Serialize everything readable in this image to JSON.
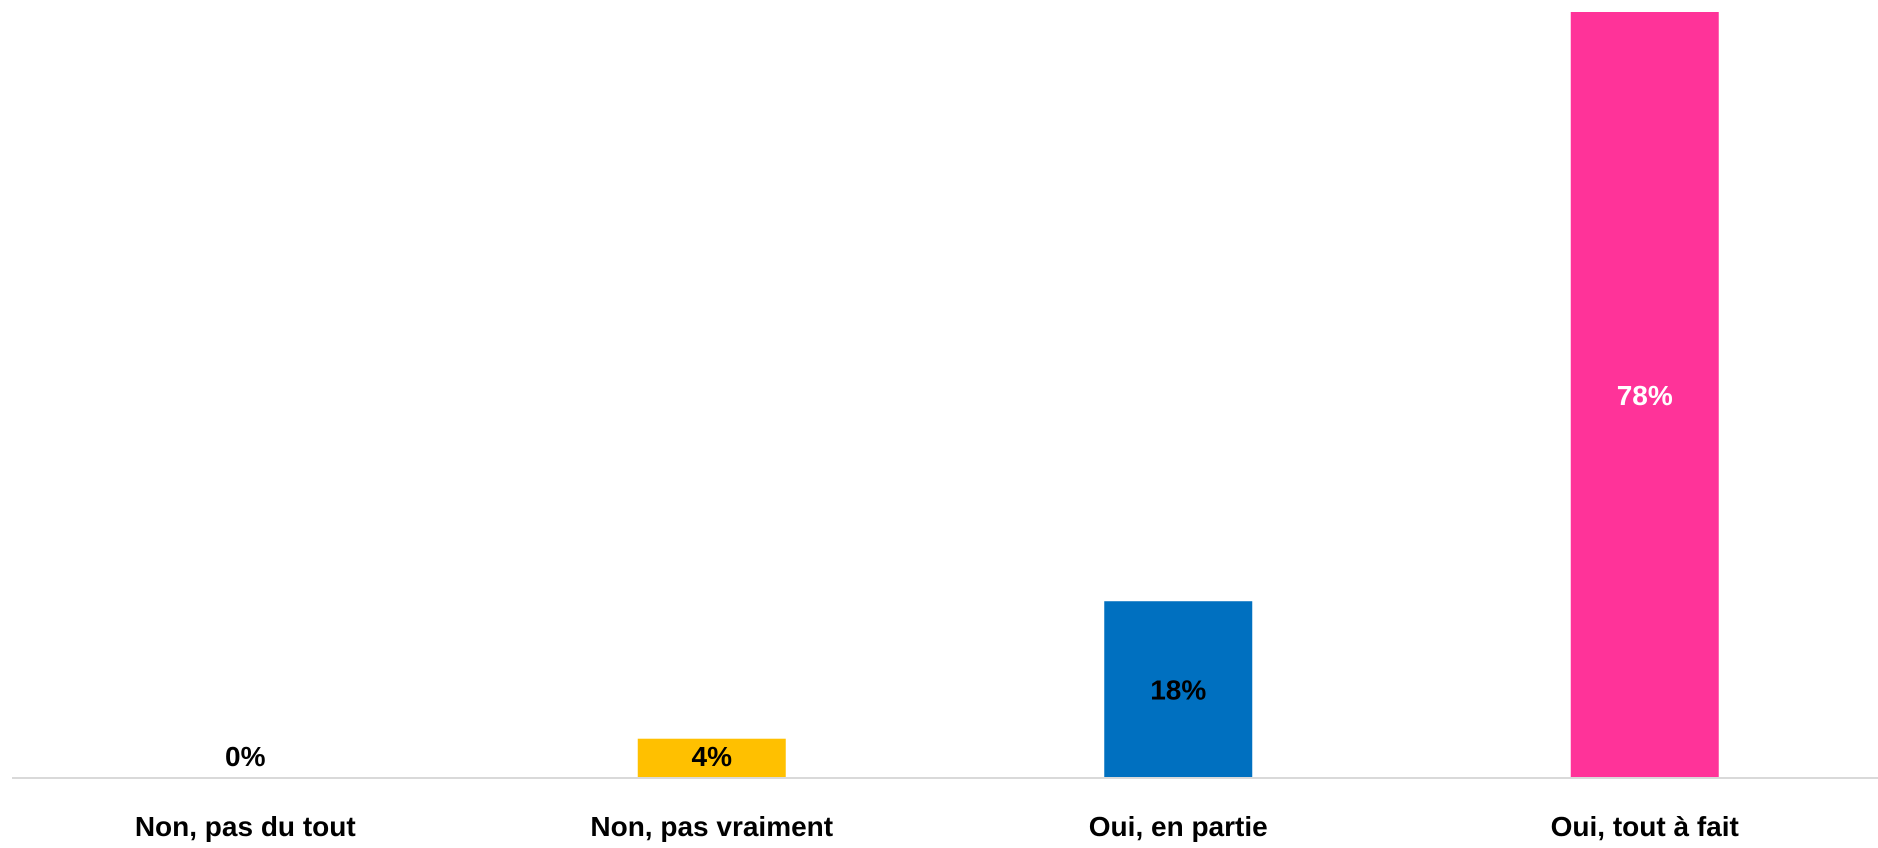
{
  "chart_data": {
    "type": "bar",
    "title": "",
    "xlabel": "",
    "ylabel": "",
    "categories": [
      "Non, pas du tout",
      "Non, pas vraiment",
      "Oui, en partie",
      "Oui, tout à fait"
    ],
    "values": [
      0,
      4,
      18,
      78
    ],
    "value_labels": [
      "0%",
      "4%",
      "18%",
      "78%"
    ],
    "colors": [
      "#7f7f7f",
      "#ffc000",
      "#0070c0",
      "#ff3399"
    ],
    "label_colors": [
      "#000000",
      "#000000",
      "#000000",
      "#ffffff"
    ],
    "ylim": [
      0,
      78
    ],
    "grid": false,
    "legend": "none",
    "y_axis_shown": false
  }
}
